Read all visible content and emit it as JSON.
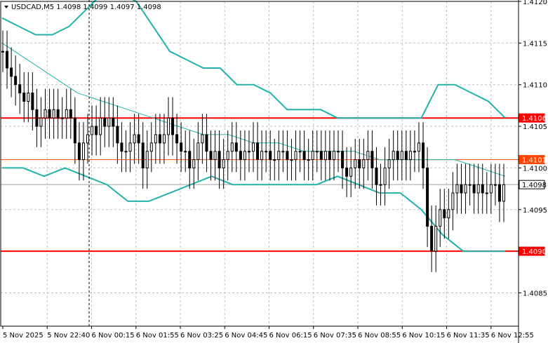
{
  "header": {
    "arrow_icon": "triangle-down-icon",
    "symbol_info": "USDCAD,M5  1.4098 1.4099 1.4097 1.4098"
  },
  "colors": {
    "background": "#ffffff",
    "candles": "#000000",
    "band": "#20b2aa",
    "level_red": "#ff0000",
    "level_orange": "#ff4500",
    "grid": "#c0c0c0"
  },
  "chart_data": {
    "type": "candlestick",
    "symbol": "USDCAD",
    "timeframe": "M5",
    "ylim": [
      1.4081,
      1.412
    ],
    "grid": true,
    "yticks": [
      "1.4120",
      "1.4115",
      "1.4110",
      "1.4105",
      "1.4100",
      "1.4095",
      "1.4085"
    ],
    "xticks": [
      "5 Nov 2025",
      "5 Nov 22:40",
      "6 Nov 00:15",
      "6 Nov 01:55",
      "6 Nov 03:25",
      "6 Nov 04:45",
      "6 Nov 06:15",
      "6 Nov 07:35",
      "6 Nov 08:55",
      "6 Nov 10:15",
      "6 Nov 11:35",
      "6 Nov 12:55"
    ],
    "levels": [
      {
        "value": 1.4106,
        "label": "1.4106",
        "color": "#ff0000"
      },
      {
        "value": 1.4101,
        "label": "1.4101",
        "color": "#ff4500"
      },
      {
        "value": 1.409,
        "label": "1.4090",
        "color": "#ff0000"
      }
    ],
    "current_price": {
      "value": 1.4098,
      "label": "1.4098"
    },
    "series": [
      {
        "close": [
          1.4114,
          1.4112,
          1.4111,
          1.411,
          1.4109,
          1.4108,
          1.4109,
          1.4107,
          1.4105,
          1.4106,
          1.4107,
          1.4106,
          1.4107,
          1.4106,
          1.4106,
          1.4107,
          1.4106,
          1.4103,
          1.4101,
          1.4103,
          1.4104,
          1.4105,
          1.4104,
          1.4106,
          1.4105,
          1.4106,
          1.4105,
          1.4103,
          1.4102,
          1.4102,
          1.4103,
          1.4104,
          1.4103,
          1.41,
          1.4102,
          1.4103,
          1.4104,
          1.4103,
          1.4104,
          1.4106,
          1.4104,
          1.4103,
          1.4102,
          1.4102,
          1.41,
          1.4101,
          1.4103,
          1.4104,
          1.4102,
          1.4101,
          1.4102,
          1.41,
          1.4101,
          1.4102,
          1.4103,
          1.4102,
          1.4101,
          1.4102,
          1.4102,
          1.4103,
          1.4101,
          1.4102,
          1.4102,
          1.4101,
          1.4101,
          1.4102,
          1.4102,
          1.4101,
          1.4101,
          1.4102,
          1.4102,
          1.4101,
          1.4101,
          1.4102,
          1.4102,
          1.4101,
          1.4102,
          1.4101,
          1.4102,
          1.4102,
          1.41,
          1.4099,
          1.41,
          1.4101,
          1.41,
          1.4101,
          1.4102,
          1.41,
          1.4098,
          1.4098,
          1.41,
          1.4101,
          1.4102,
          1.4101,
          1.4102,
          1.4101,
          1.4102,
          1.4102,
          1.4103,
          1.41,
          1.4093,
          1.409,
          1.4093,
          1.4095,
          1.4094,
          1.4095,
          1.4097,
          1.4098,
          1.4097,
          1.4098,
          1.4098,
          1.4097,
          1.4098,
          1.4097,
          1.4097,
          1.4098,
          1.4098,
          1.4096,
          1.4098
        ]
      },
      {
        "upper_band": [
          1.4118,
          1.4117,
          1.4116,
          1.4116,
          1.4117,
          1.4119,
          1.4121,
          1.4121,
          1.412,
          1.4117,
          1.4114,
          1.4113,
          1.4112,
          1.4112,
          1.411,
          1.411,
          1.4109,
          1.4107,
          1.4107,
          1.4107,
          1.4106,
          1.4106,
          1.4106,
          1.4106,
          1.4106,
          1.4106,
          1.411,
          1.411,
          1.4109,
          1.4108,
          1.4106
        ]
      },
      {
        "middle_band": [
          1.4115,
          1.4113,
          1.4111,
          1.4109,
          1.4108,
          1.4107,
          1.4106,
          1.4105,
          1.4104,
          1.4104,
          1.4103,
          1.4103,
          1.4102,
          1.4102,
          1.4102,
          1.4101,
          1.4101,
          1.4101,
          1.4101,
          1.41,
          1.4099
        ]
      },
      {
        "lower_band": [
          1.41,
          1.41,
          1.4099,
          1.41,
          1.4099,
          1.4098,
          1.4096,
          1.4096,
          1.4097,
          1.4098,
          1.4099,
          1.4098,
          1.4098,
          1.4098,
          1.4098,
          1.4098,
          1.4099,
          1.4098,
          1.4097,
          1.4097,
          1.4095,
          1.4092,
          1.409,
          1.409,
          1.409
        ]
      }
    ]
  }
}
